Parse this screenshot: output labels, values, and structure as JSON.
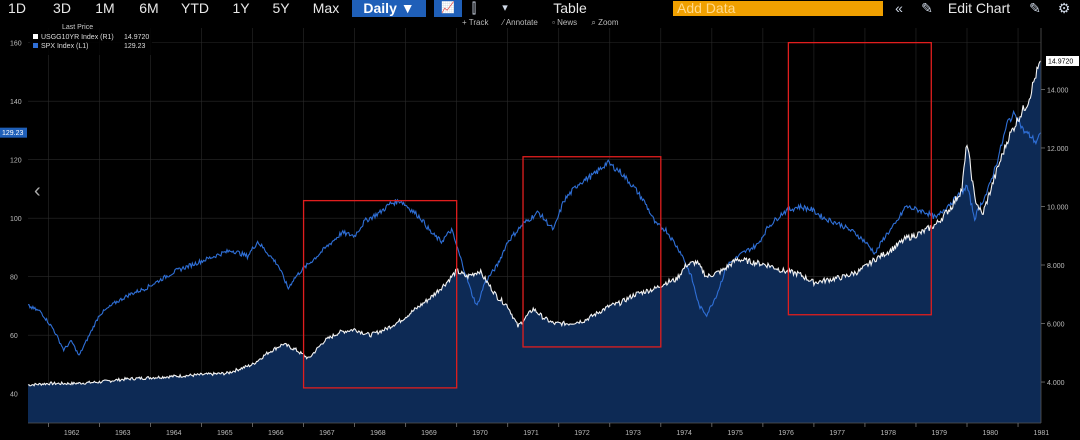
{
  "toolbar": {
    "ranges": [
      "1D",
      "3D",
      "1M",
      "6M",
      "YTD",
      "1Y",
      "5Y",
      "Max"
    ],
    "interval": "Daily ▼",
    "table_label": "Table",
    "add_data_placeholder": "Add Data",
    "edit_chart_label": "Edit Chart",
    "collapse_glyph": "«",
    "edit_glyph": "✎",
    "gear_glyph": "⚙",
    "menu_glyph": "▾",
    "line_glyph": "📈",
    "candle_glyph": "⫿"
  },
  "subbar": {
    "track": "Track",
    "annotate": "Annotate",
    "news": "News",
    "zoom": "Zoom"
  },
  "legend": {
    "header": "Last Price",
    "items": [
      {
        "name": "USGG10YR Index  (R1)",
        "value": "14.9720",
        "color": "#ffffff"
      },
      {
        "name": "SPX Index  (L1)",
        "value": "129.23",
        "color": "#2f6fd6"
      }
    ]
  },
  "colors": {
    "spx": "#2f6fd6",
    "yield": "#f2f2f2",
    "area": "#0d2a55",
    "box": "#e01e1e",
    "grid": "#2a2a2a",
    "badge_left": "#1f5fb8",
    "badge_right": "#ffffff"
  },
  "chart_data": {
    "type": "line",
    "title": "",
    "x_range": [
      1961.6,
      1981.45
    ],
    "x_tick_labels": [
      "1962",
      "1963",
      "1964",
      "1965",
      "1966",
      "1967",
      "1968",
      "1969",
      "1970",
      "1971",
      "1972",
      "1973",
      "1974",
      "1975",
      "1976",
      "1977",
      "1978",
      "1979",
      "1980",
      "1981"
    ],
    "left_axis": {
      "ylim": [
        30,
        165
      ],
      "ticks": [
        "40",
        "60",
        "80",
        "100",
        "120",
        "140",
        "160"
      ],
      "series": "SPX Index"
    },
    "right_axis": {
      "ylim": [
        2.6,
        16.1
      ],
      "ticks": [
        "4.000",
        "6.000",
        "8.000",
        "10.000",
        "12.000",
        "14.000"
      ],
      "series": "USGG10YR Index"
    },
    "last_values": {
      "left": "129.23",
      "right": "14.9720"
    },
    "series": [
      {
        "name": "SPX Index",
        "axis": "left",
        "x": [
          1961.6,
          1961.85,
          1962.1,
          1962.3,
          1962.45,
          1962.6,
          1962.8,
          1963.0,
          1963.3,
          1963.6,
          1963.9,
          1964.2,
          1964.5,
          1964.8,
          1965.1,
          1965.4,
          1965.6,
          1965.9,
          1966.1,
          1966.3,
          1966.5,
          1966.7,
          1966.8,
          1966.95,
          1967.2,
          1967.5,
          1967.75,
          1968.0,
          1968.2,
          1968.5,
          1968.7,
          1968.9,
          1969.1,
          1969.3,
          1969.5,
          1969.7,
          1969.9,
          1970.1,
          1970.3,
          1970.4,
          1970.55,
          1970.8,
          1971.0,
          1971.3,
          1971.6,
          1971.9,
          1972.1,
          1972.4,
          1972.7,
          1972.95,
          1973.2,
          1973.5,
          1973.7,
          1973.9,
          1974.1,
          1974.4,
          1974.6,
          1974.75,
          1974.9,
          1975.1,
          1975.3,
          1975.6,
          1975.9,
          1976.1,
          1976.4,
          1976.7,
          1976.95,
          1977.2,
          1977.5,
          1977.8,
          1978.0,
          1978.2,
          1978.4,
          1978.6,
          1978.8,
          1979.0,
          1979.2,
          1979.4,
          1979.6,
          1979.8,
          1980.0,
          1980.15,
          1980.25,
          1980.4,
          1980.6,
          1980.8,
          1980.95,
          1981.1,
          1981.25,
          1981.35,
          1981.45
        ],
        "values": [
          70,
          68,
          62,
          55,
          58,
          53,
          60,
          67,
          71,
          74,
          76,
          79,
          82,
          84,
          86,
          88,
          89,
          87,
          92,
          88,
          84,
          76,
          79,
          82,
          86,
          91,
          95,
          94,
          99,
          102,
          105,
          106,
          103,
          100,
          95,
          92,
          96,
          85,
          74,
          70,
          78,
          84,
          92,
          98,
          102,
          96,
          106,
          112,
          115,
          119,
          116,
          110,
          105,
          98,
          96,
          88,
          80,
          70,
          67,
          74,
          84,
          88,
          91,
          97,
          102,
          104,
          103,
          100,
          98,
          95,
          92,
          88,
          94,
          98,
          104,
          103,
          102,
          100,
          104,
          107,
          111,
          100,
          104,
          109,
          120,
          133,
          136,
          130,
          128,
          126,
          129.23
        ]
      },
      {
        "name": "USGG10YR Index",
        "axis": "right",
        "x": [
          1961.6,
          1962.0,
          1962.5,
          1963.0,
          1963.5,
          1964.0,
          1964.5,
          1965.0,
          1965.5,
          1966.0,
          1966.3,
          1966.6,
          1966.85,
          1967.1,
          1967.4,
          1967.7,
          1968.0,
          1968.3,
          1968.6,
          1968.9,
          1969.2,
          1969.5,
          1969.8,
          1970.0,
          1970.2,
          1970.45,
          1970.6,
          1970.8,
          1971.0,
          1971.2,
          1971.5,
          1971.7,
          1971.9,
          1972.2,
          1972.5,
          1972.8,
          1973.0,
          1973.2,
          1973.5,
          1973.7,
          1973.9,
          1974.1,
          1974.3,
          1974.5,
          1974.7,
          1974.9,
          1975.2,
          1975.5,
          1975.8,
          1976.1,
          1976.4,
          1976.7,
          1977.0,
          1977.3,
          1977.6,
          1977.9,
          1978.2,
          1978.5,
          1978.8,
          1979.1,
          1979.4,
          1979.7,
          1979.9,
          1980.0,
          1980.15,
          1980.3,
          1980.45,
          1980.6,
          1980.8,
          1981.0,
          1981.2,
          1981.35,
          1981.45
        ],
        "values": [
          3.9,
          3.95,
          3.95,
          4.0,
          4.1,
          4.15,
          4.2,
          4.25,
          4.3,
          4.6,
          5.0,
          5.3,
          5.1,
          4.8,
          5.4,
          5.7,
          5.8,
          5.6,
          5.8,
          6.1,
          6.5,
          6.9,
          7.4,
          7.8,
          7.6,
          7.8,
          7.4,
          6.9,
          6.6,
          5.9,
          6.5,
          6.2,
          6.0,
          6.0,
          6.1,
          6.4,
          6.6,
          6.7,
          7.0,
          7.1,
          7.2,
          7.4,
          7.5,
          8.0,
          8.1,
          7.6,
          7.8,
          8.2,
          8.1,
          8.0,
          7.8,
          7.7,
          7.4,
          7.5,
          7.6,
          7.8,
          8.2,
          8.5,
          8.9,
          9.1,
          9.4,
          10.0,
          10.6,
          12.2,
          10.3,
          9.7,
          10.5,
          11.3,
          12.3,
          13.0,
          13.6,
          14.5,
          14.972
        ]
      }
    ],
    "annotation_boxes": [
      {
        "x_start": 1967.0,
        "x_end": 1970.0,
        "y_top_left": 106,
        "y_bottom_left": 42
      },
      {
        "x_start": 1971.3,
        "x_end": 1974.0,
        "y_top_left": 121,
        "y_bottom_left": 56
      },
      {
        "x_start": 1976.5,
        "x_end": 1979.3,
        "y_top_left": 160,
        "y_bottom_left": 67
      }
    ]
  }
}
